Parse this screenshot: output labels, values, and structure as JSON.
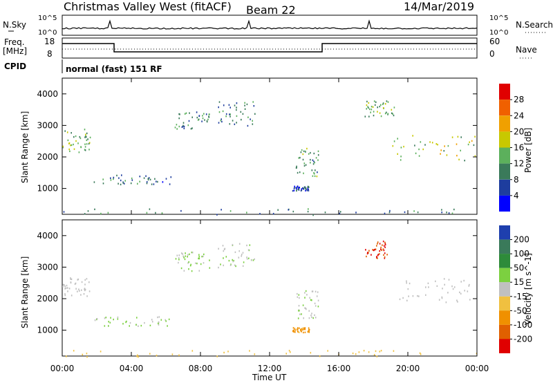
{
  "header": {
    "station": "Christmas Valley West (fitACF)",
    "beam": "Beam 22",
    "date": "14/Mar/2019"
  },
  "noise_panel": {
    "left_label": "N.Sky",
    "right_label": "N.Search",
    "left_ticks": [
      "10^5",
      "10^0"
    ],
    "right_ticks": [
      "10^5",
      "10^0"
    ]
  },
  "freq_panel": {
    "left_label": "Freq.",
    "left_unit": "[MHz]",
    "right_label": "Nave",
    "left_ticks": [
      "18",
      "8"
    ],
    "right_ticks": [
      "60",
      "0"
    ]
  },
  "cpid": {
    "label": "CPID",
    "mode": "normal (fast) 151 RF"
  },
  "chart_data": [
    {
      "type": "heatmap",
      "title": "Power",
      "ylabel": "Slant Range [km]",
      "xlabel": "Time UT",
      "xlim": [
        0,
        24
      ],
      "ylim": [
        180,
        4500
      ],
      "x_tick_labels": [
        "00:00",
        "04:00",
        "08:00",
        "12:00",
        "16:00",
        "20:00",
        "00:00"
      ],
      "y_tick_labels": [
        "1000",
        "2000",
        "3000",
        "4000"
      ],
      "colorbar": {
        "label": "Power [dB]",
        "ticks": [
          "4",
          "8",
          "12",
          "16",
          "20",
          "24",
          "28"
        ],
        "colors": [
          "#0000ff",
          "#1e3d9e",
          "#3a7a5a",
          "#5cb05c",
          "#c8c800",
          "#f0a000",
          "#f06000",
          "#e00000"
        ]
      },
      "echo_regions": [
        {
          "t0": 0.0,
          "t1": 1.6,
          "r0": 2100,
          "r1": 2900,
          "power_db": 14
        },
        {
          "t0": 1.8,
          "t1": 6.3,
          "r0": 1150,
          "r1": 1450,
          "power_db": 8
        },
        {
          "t0": 6.5,
          "t1": 8.5,
          "r0": 2900,
          "r1": 3500,
          "power_db": 10
        },
        {
          "t0": 9.0,
          "t1": 11.2,
          "r0": 3000,
          "r1": 3800,
          "power_db": 10
        },
        {
          "t0": 13.5,
          "t1": 14.8,
          "r0": 1400,
          "r1": 2300,
          "power_db": 12
        },
        {
          "t0": 13.3,
          "t1": 14.3,
          "r0": 950,
          "r1": 1100,
          "power_db": 6
        },
        {
          "t0": 17.5,
          "t1": 19.3,
          "r0": 3300,
          "r1": 3850,
          "power_db": 14
        },
        {
          "t0": 19.0,
          "t1": 24.0,
          "r0": 1900,
          "r1": 2700,
          "power_db": 16
        },
        {
          "t0": 0.0,
          "t1": 24.0,
          "r0": 180,
          "r1": 380,
          "power_db": 10
        }
      ]
    },
    {
      "type": "heatmap",
      "title": "Velocity",
      "ylabel": "Slant Range [km]",
      "xlabel": "Time UT",
      "xlim": [
        0,
        24
      ],
      "ylim": [
        180,
        4500
      ],
      "x_tick_labels": [
        "00:00",
        "04:00",
        "08:00",
        "12:00",
        "16:00",
        "20:00",
        "00:00"
      ],
      "y_tick_labels": [
        "1000",
        "2000",
        "3000",
        "4000"
      ],
      "colorbar": {
        "label": "Velocity [m s^-1]",
        "ticks": [
          "200",
          "100",
          "50",
          "15",
          "-15",
          "-50",
          "-100",
          "-200"
        ],
        "colors": [
          "#1e3fae",
          "#3a7a5a",
          "#2e8b3a",
          "#7cd040",
          "#c0c0c0",
          "#f0c040",
          "#f09000",
          "#e06000",
          "#e00000"
        ]
      },
      "echo_regions": [
        {
          "t0": 0.0,
          "t1": 1.6,
          "r0": 2100,
          "r1": 2700,
          "velocity": 0
        },
        {
          "t0": 1.8,
          "t1": 6.3,
          "r0": 1150,
          "r1": 1450,
          "velocity": 20
        },
        {
          "t0": 6.5,
          "t1": 8.5,
          "r0": 2900,
          "r1": 3500,
          "velocity": 20
        },
        {
          "t0": 9.0,
          "t1": 11.2,
          "r0": 3000,
          "r1": 3800,
          "velocity": 10
        },
        {
          "t0": 13.5,
          "t1": 14.8,
          "r0": 1400,
          "r1": 2300,
          "velocity": 10
        },
        {
          "t0": 13.3,
          "t1": 14.3,
          "r0": 950,
          "r1": 1100,
          "velocity": -60
        },
        {
          "t0": 17.5,
          "t1": 18.8,
          "r0": 3300,
          "r1": 3850,
          "velocity": -200
        },
        {
          "t0": 19.5,
          "t1": 24.0,
          "r0": 1900,
          "r1": 2700,
          "velocity": 0
        },
        {
          "t0": 0.0,
          "t1": 24.0,
          "r0": 180,
          "r1": 380,
          "velocity": -30
        }
      ]
    }
  ]
}
